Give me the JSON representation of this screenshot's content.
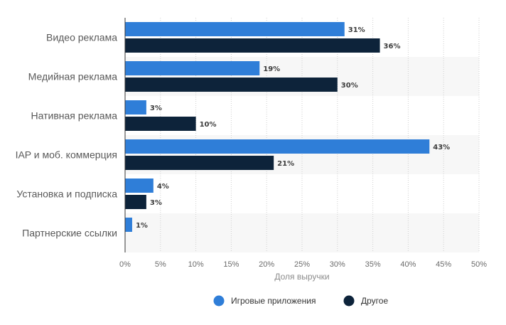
{
  "chart_data": {
    "type": "bar",
    "orientation": "horizontal",
    "categories": [
      "Видео реклама",
      "Медийная реклама",
      "Нативная реклама",
      "IAP и моб. коммерция",
      "Установка и подписка",
      "Партнерские ссылки"
    ],
    "series": [
      {
        "name": "Игровые приложения",
        "values": [
          31,
          19,
          3,
          43,
          4,
          1
        ],
        "color": "#2f7ed8"
      },
      {
        "name": "Другое",
        "values": [
          36,
          30,
          10,
          21,
          3,
          null
        ],
        "color": "#0d233a"
      }
    ],
    "value_suffix": "%",
    "xlabel": "Доля выручки",
    "xlim": [
      0,
      50
    ],
    "x_ticks": [
      "0%",
      "5%",
      "10%",
      "15%",
      "20%",
      "25%",
      "30%",
      "35%",
      "40%",
      "45%",
      "50%"
    ],
    "grid": "vertical dotted",
    "legend_position": "bottom-center",
    "band_color": "#f7f7f7"
  }
}
